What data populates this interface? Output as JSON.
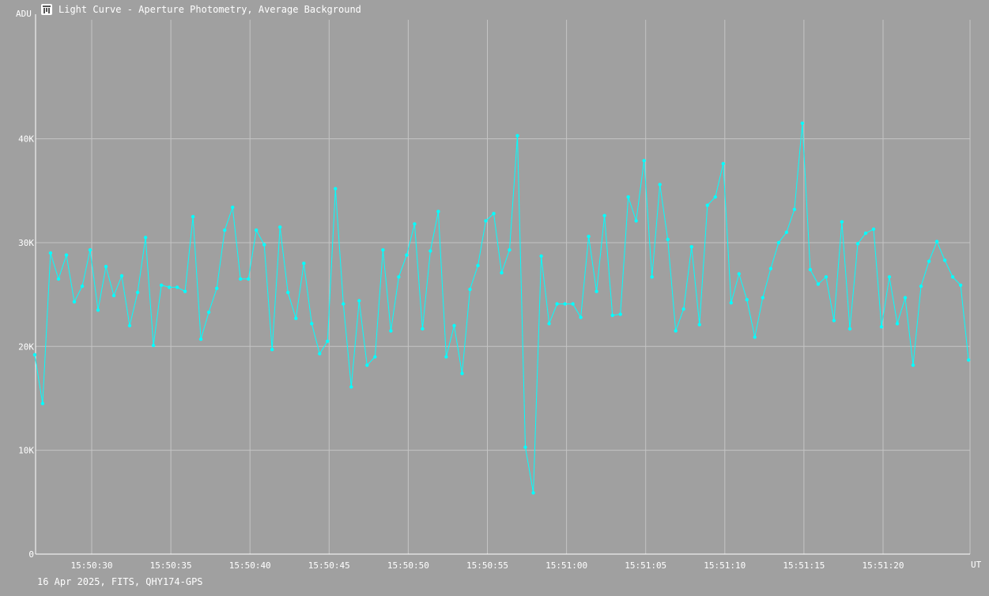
{
  "window": {
    "title": "Light Curve - Aperture Photometry, Average Background",
    "icon": "light-curve-app-icon"
  },
  "footer": {
    "text": "16 Apr 2025, FITS, QHY174-GPS"
  },
  "colors": {
    "background": "#a0a0a0",
    "grid": "#c4c4c4",
    "series": "#00ffff",
    "text": "#ffffff"
  },
  "chart_data": {
    "type": "line",
    "title": "Light Curve - Aperture Photometry, Average Background",
    "ylabel": "ADU",
    "xlabel": "UT",
    "ylim": [
      0,
      52000
    ],
    "y_ticks": [
      0,
      10000,
      20000,
      30000,
      40000
    ],
    "y_tick_labels": [
      "0",
      "10K",
      "20K",
      "30K",
      "40K"
    ],
    "x_tick_labels": [
      "15:50:30",
      "15:50:35",
      "15:50:40",
      "15:50:45",
      "15:50:50",
      "15:50:55",
      "15:51:00",
      "15:51:05",
      "15:51:10",
      "15:51:15",
      "15:51:20"
    ],
    "grid": true,
    "series": [
      {
        "color": "#00ffff",
        "x_start": "15:50:26.4",
        "interval_seconds": 0.5,
        "values": [
          19200,
          14500,
          29000,
          26500,
          28800,
          24300,
          25800,
          29300,
          23500,
          27700,
          24900,
          26800,
          22000,
          25200,
          30500,
          20100,
          25900,
          25700,
          25700,
          25300,
          32500,
          20700,
          23300,
          25600,
          31200,
          33400,
          26500,
          26500,
          31200,
          29800,
          19700,
          31500,
          25200,
          22700,
          28000,
          22200,
          19300,
          20500,
          35200,
          24100,
          16100,
          24400,
          18200,
          19000,
          29300,
          21500,
          26700,
          28800,
          31800,
          21700,
          29200,
          33000,
          19000,
          22000,
          17400,
          25500,
          27800,
          32100,
          32800,
          27100,
          29300,
          40300,
          10300,
          5900,
          28700,
          22200,
          24100,
          24100,
          24100,
          22800,
          30600,
          25300,
          32600,
          23000,
          23100,
          34400,
          32100,
          37900,
          26700,
          35600,
          30300,
          21500,
          23600,
          29600,
          22100,
          33600,
          34400,
          37600,
          24200,
          27000,
          24500,
          20900,
          24700,
          27500,
          30000,
          31000,
          33200,
          41500,
          27400,
          26000,
          26700,
          22500,
          32000,
          21700,
          29900,
          30900,
          31300,
          21900,
          26700,
          22200,
          24700,
          18200,
          25800,
          28200,
          30100,
          28300,
          26700,
          25900,
          18700
        ]
      }
    ]
  }
}
